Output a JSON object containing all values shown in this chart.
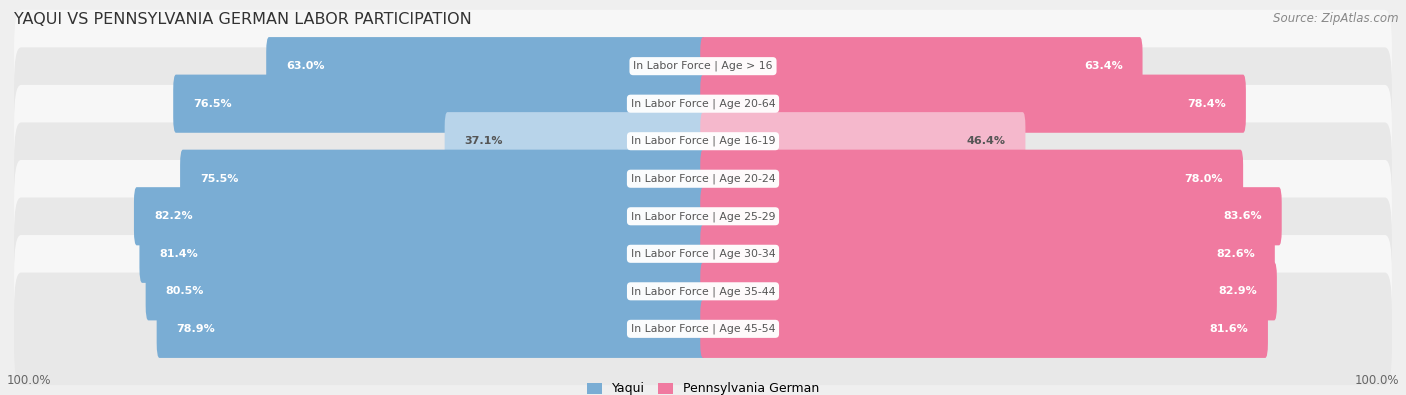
{
  "title": "YAQUI VS PENNSYLVANIA GERMAN LABOR PARTICIPATION",
  "source": "Source: ZipAtlas.com",
  "categories": [
    "In Labor Force | Age > 16",
    "In Labor Force | Age 20-64",
    "In Labor Force | Age 16-19",
    "In Labor Force | Age 20-24",
    "In Labor Force | Age 25-29",
    "In Labor Force | Age 30-34",
    "In Labor Force | Age 35-44",
    "In Labor Force | Age 45-54"
  ],
  "yaqui_values": [
    63.0,
    76.5,
    37.1,
    75.5,
    82.2,
    81.4,
    80.5,
    78.9
  ],
  "pa_german_values": [
    63.4,
    78.4,
    46.4,
    78.0,
    83.6,
    82.6,
    82.9,
    81.6
  ],
  "yaqui_labels": [
    "63.0%",
    "76.5%",
    "37.1%",
    "75.5%",
    "82.2%",
    "81.4%",
    "80.5%",
    "78.9%"
  ],
  "pa_german_labels": [
    "63.4%",
    "78.4%",
    "46.4%",
    "78.0%",
    "83.6%",
    "82.6%",
    "82.9%",
    "81.6%"
  ],
  "yaqui_color_strong": "#7aadd4",
  "yaqui_color_weak": "#b8d4ea",
  "pa_german_color_strong": "#f07aa0",
  "pa_german_color_weak": "#f5b8cc",
  "bg_color": "#efefef",
  "row_bg_colors": [
    "#f7f7f7",
    "#e8e8e8"
  ],
  "label_color_white": "#ffffff",
  "label_color_dark": "#555555",
  "center_label_color": "#555555",
  "footer_label": "100.0%",
  "legend_yaqui": "Yaqui",
  "legend_pa": "Pennsylvania German",
  "weak_rows": [
    2
  ]
}
